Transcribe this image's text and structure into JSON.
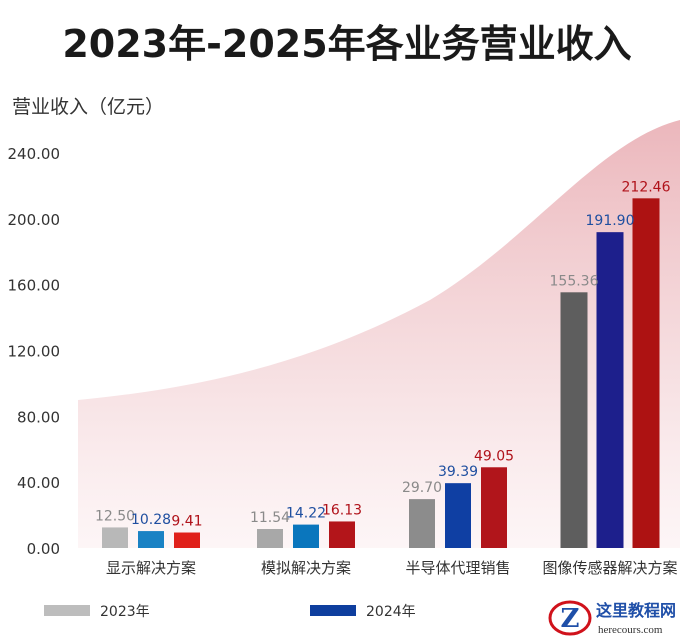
{
  "chart_data": {
    "type": "bar",
    "title": "2023年-2025年各业务营业收入",
    "ylabel": "营业收入（亿元）",
    "xlabel": "",
    "ylim": [
      0,
      240
    ],
    "yticks": [
      "0.00",
      "40.00",
      "80.00",
      "120.00",
      "160.00",
      "200.00",
      "240.00"
    ],
    "categories": [
      "显示解决方案",
      "模拟解决方案",
      "半导体代理销售",
      "图像传感器解决方案"
    ],
    "series": [
      {
        "name": "2023年",
        "values": [
          12.5,
          11.54,
          29.7,
          155.36
        ],
        "labels": [
          "12.50",
          "11.54",
          "29.70",
          "155.36"
        ]
      },
      {
        "name": "2024年",
        "values": [
          10.28,
          14.22,
          39.39,
          191.9
        ],
        "labels": [
          "10.28",
          "14.22",
          "39.39",
          "191.90"
        ]
      },
      {
        "name": "",
        "values": [
          9.41,
          16.13,
          49.05,
          212.46
        ],
        "labels": [
          "9.41",
          "16.13",
          "49.05",
          "212.46"
        ]
      }
    ],
    "legend": [
      "2023年",
      "2024年"
    ],
    "legend_position": "bottom",
    "grid": false
  },
  "watermark": {
    "name": "这里教程网",
    "url": "herecours.com",
    "letter": "Z"
  }
}
